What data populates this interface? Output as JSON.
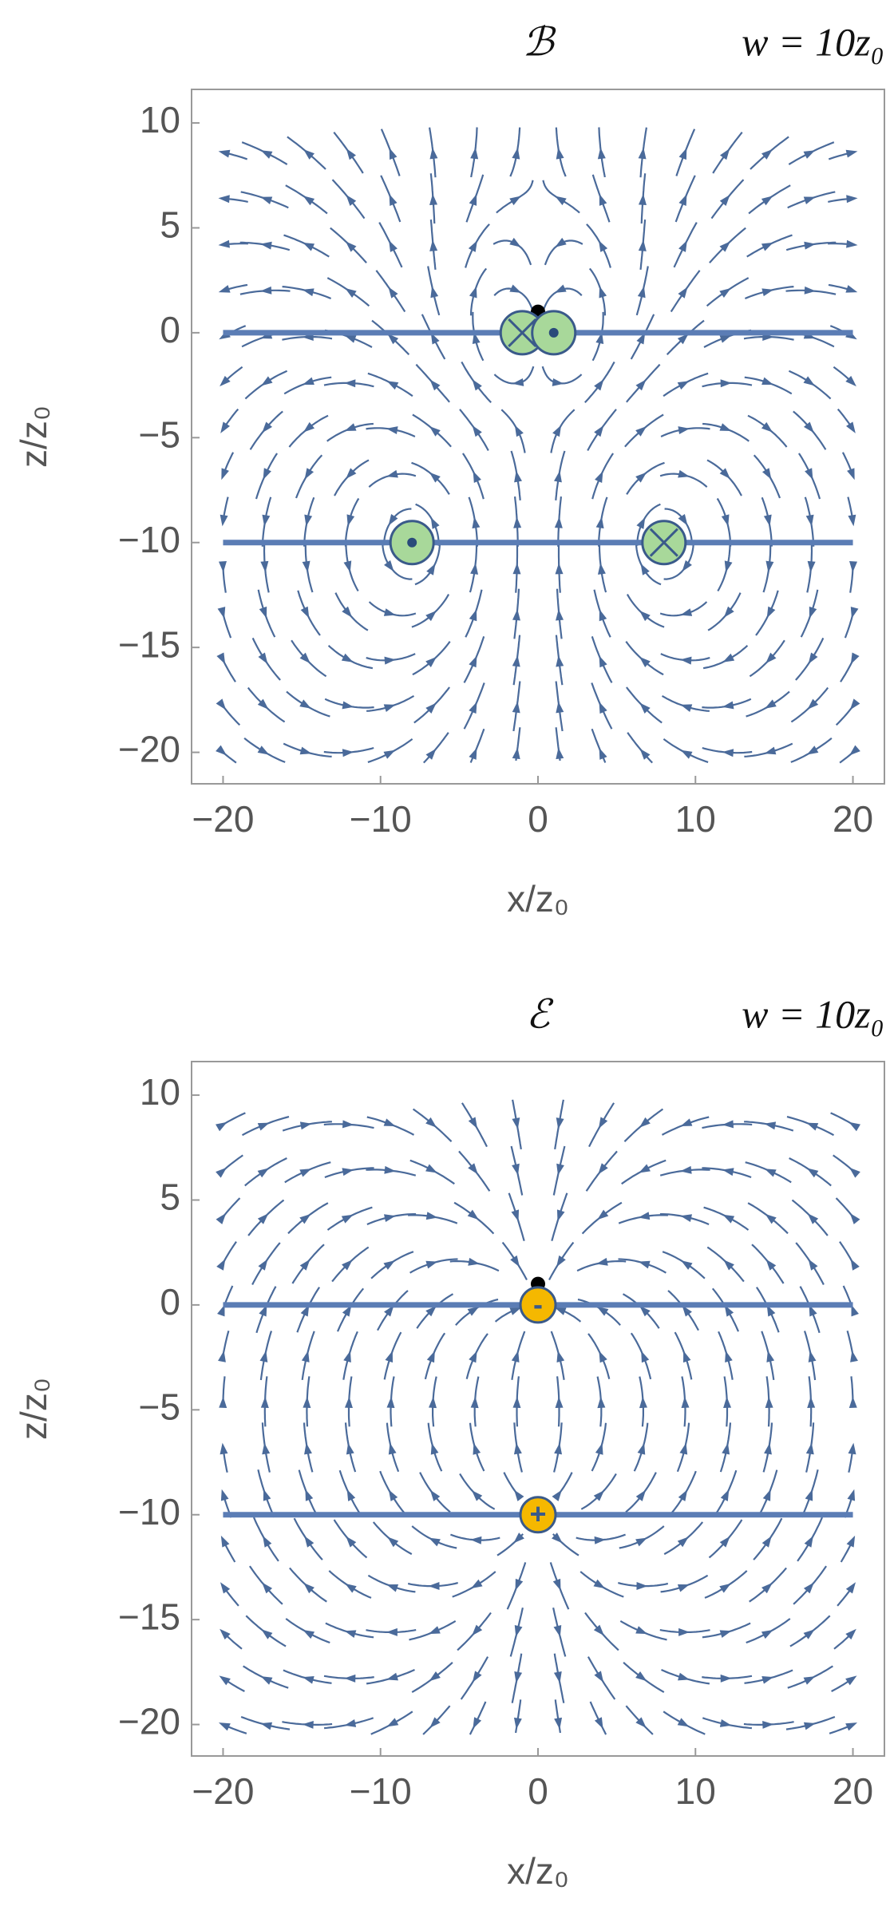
{
  "chart_data": [
    {
      "type": "streamplot",
      "field_label": "ℬ",
      "title": "w = 10z₀",
      "x_label": "x/z₀",
      "y_label": "z/z₀",
      "xlim": [
        -22,
        22
      ],
      "ylim": [
        -21.5,
        11.6
      ],
      "xticks": [
        {
          "value": -20,
          "label": "−20"
        },
        {
          "value": -10,
          "label": "−10"
        },
        0,
        10,
        20
      ],
      "yticks": [
        {
          "value": -20,
          "label": "−20"
        },
        {
          "value": -15,
          "label": "−15"
        },
        {
          "value": -10,
          "label": "−10"
        },
        {
          "value": -5,
          "label": "−5"
        },
        0,
        5,
        10
      ],
      "plates": [
        0,
        -10
      ],
      "plate_x": [
        -20,
        20
      ],
      "point": [
        0,
        1
      ],
      "stream_color": "#4a6a9a",
      "plate_color": "#5b7db5",
      "source_color": "#a8d89a",
      "sources": [
        {
          "x": -1,
          "y": 0,
          "current": -1
        },
        {
          "x": 1,
          "y": 0,
          "current": 1
        },
        {
          "x": -8,
          "y": -10,
          "current": 1
        },
        {
          "x": 8,
          "y": -10,
          "current": -1
        }
      ]
    },
    {
      "type": "streamplot",
      "field_label": "ℰ",
      "title": "w = 10z₀",
      "x_label": "x/z₀",
      "y_label": "z/z₀",
      "xlim": [
        -22,
        22
      ],
      "ylim": [
        -21.5,
        11.6
      ],
      "xticks": [
        {
          "value": -20,
          "label": "−20"
        },
        {
          "value": -10,
          "label": "−10"
        },
        0,
        10,
        20
      ],
      "yticks": [
        {
          "value": -20,
          "label": "−20"
        },
        {
          "value": -15,
          "label": "−15"
        },
        {
          "value": -10,
          "label": "−10"
        },
        {
          "value": -5,
          "label": "−5"
        },
        0,
        5,
        10
      ],
      "plates": [
        0,
        -10
      ],
      "plate_x": [
        -20,
        20
      ],
      "point": [
        0,
        1
      ],
      "stream_color": "#4a6a9a",
      "plate_color": "#5b7db5",
      "source_color": "#f5b800",
      "sources": [
        {
          "x": 0,
          "y": 0,
          "charge": -1,
          "label": "-"
        },
        {
          "x": 0,
          "y": -10,
          "charge": 1,
          "label": "+"
        }
      ]
    }
  ]
}
